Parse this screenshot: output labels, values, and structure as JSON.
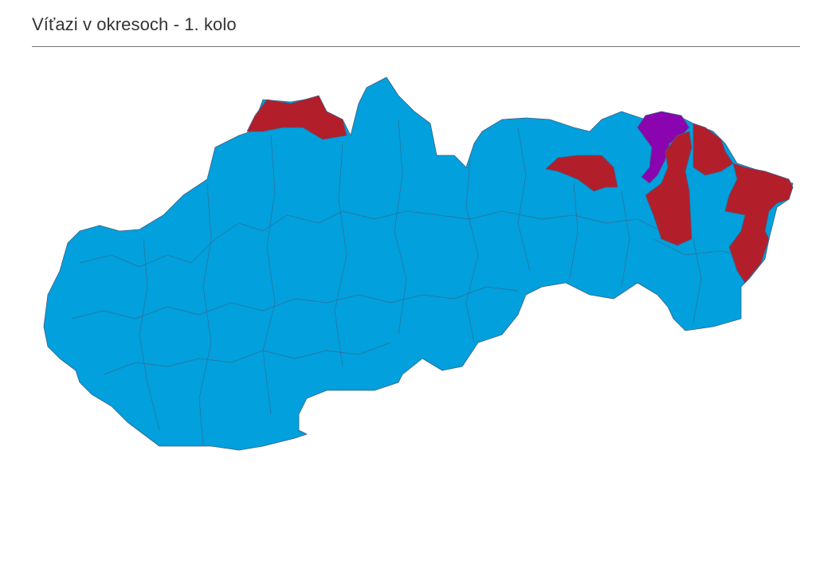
{
  "header": {
    "title": "Víťazi v okresoch - 1. kolo"
  },
  "map": {
    "country": "Slovakia",
    "colors": {
      "blue": "#02a0dc",
      "red": "#b31e2b",
      "purple": "#8a05b0",
      "border": "#3f5f86"
    }
  }
}
